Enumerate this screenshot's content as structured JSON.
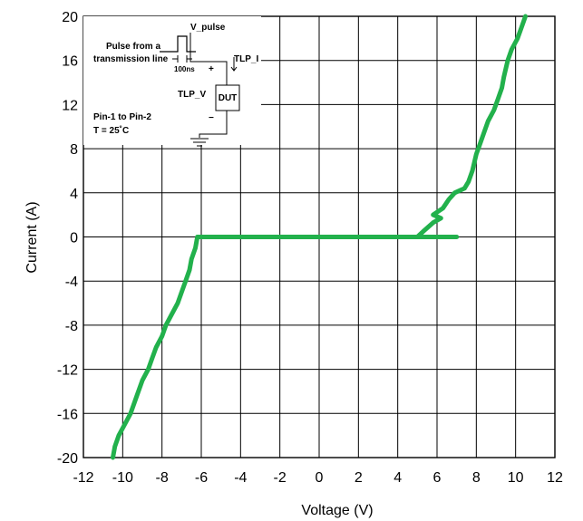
{
  "chart_data": {
    "type": "line",
    "title": "",
    "xlabel": "Voltage (V)",
    "ylabel": "Current (A)",
    "xlim": [
      -12,
      12
    ],
    "ylim": [
      -20,
      20
    ],
    "x_ticks": [
      -12,
      -10,
      -8,
      -6,
      -4,
      -2,
      0,
      2,
      4,
      6,
      8,
      10,
      12
    ],
    "y_ticks": [
      -20,
      -16,
      -12,
      -8,
      -4,
      0,
      4,
      8,
      12,
      16,
      20
    ],
    "x_tick_labels": [
      "-12",
      "-10",
      "-8",
      "-6",
      "-4",
      "-2",
      "0",
      "2",
      "4",
      "6",
      "8",
      "10",
      "12"
    ],
    "y_tick_labels": [
      "-20",
      "-16",
      "-12",
      "-8",
      "-4",
      "0",
      "4",
      "8",
      "12",
      "16",
      "20"
    ],
    "grid": true,
    "series_color": "#22b14c",
    "series": [
      {
        "name": "",
        "points": [
          [
            -10.5,
            -20
          ],
          [
            -10.4,
            -19
          ],
          [
            -10.2,
            -18
          ],
          [
            -9.9,
            -17
          ],
          [
            -9.6,
            -16
          ],
          [
            -9.3,
            -14.5
          ],
          [
            -9.0,
            -13
          ],
          [
            -8.7,
            -12
          ],
          [
            -8.5,
            -11
          ],
          [
            -8.3,
            -10
          ],
          [
            -8.0,
            -9
          ],
          [
            -7.8,
            -8
          ],
          [
            -7.5,
            -7
          ],
          [
            -7.2,
            -6
          ],
          [
            -7.0,
            -5
          ],
          [
            -6.8,
            -4
          ],
          [
            -6.6,
            -3
          ],
          [
            -6.5,
            -2
          ],
          [
            -6.3,
            -1
          ],
          [
            -6.2,
            0
          ],
          [
            -2,
            0
          ],
          [
            2,
            0
          ],
          [
            5.0,
            0
          ],
          [
            5.3,
            0.5
          ],
          [
            5.8,
            1.3
          ],
          [
            6.2,
            1.7
          ],
          [
            5.8,
            2
          ],
          [
            6.3,
            2.6
          ],
          [
            6.6,
            3.4
          ],
          [
            6.9,
            4.0
          ],
          [
            7.4,
            4.4
          ],
          [
            7.6,
            5
          ],
          [
            7.8,
            6
          ],
          [
            8.0,
            7.5
          ],
          [
            8.2,
            8.5
          ],
          [
            8.4,
            9.5
          ],
          [
            8.6,
            10.5
          ],
          [
            8.9,
            11.5
          ],
          [
            9.1,
            12.5
          ],
          [
            9.3,
            13.5
          ],
          [
            9.4,
            14.5
          ],
          [
            9.6,
            16
          ],
          [
            9.8,
            17
          ],
          [
            10.1,
            18
          ],
          [
            10.3,
            19
          ],
          [
            10.5,
            20
          ]
        ]
      },
      {
        "name": "",
        "points": [
          [
            5.0,
            0
          ],
          [
            7.0,
            0
          ]
        ]
      }
    ],
    "inset": {
      "v_pulse": "V_pulse",
      "pulse_line1": "Pulse from a",
      "pulse_line2": "transmission line",
      "duration": "100ns",
      "tlp_i": "TLP_I",
      "tlp_v": "TLP_V",
      "dut": "DUT",
      "plus": "+",
      "minus": "−",
      "pins": "Pin-1 to Pin-2",
      "temp": "T = 25˚C"
    }
  }
}
